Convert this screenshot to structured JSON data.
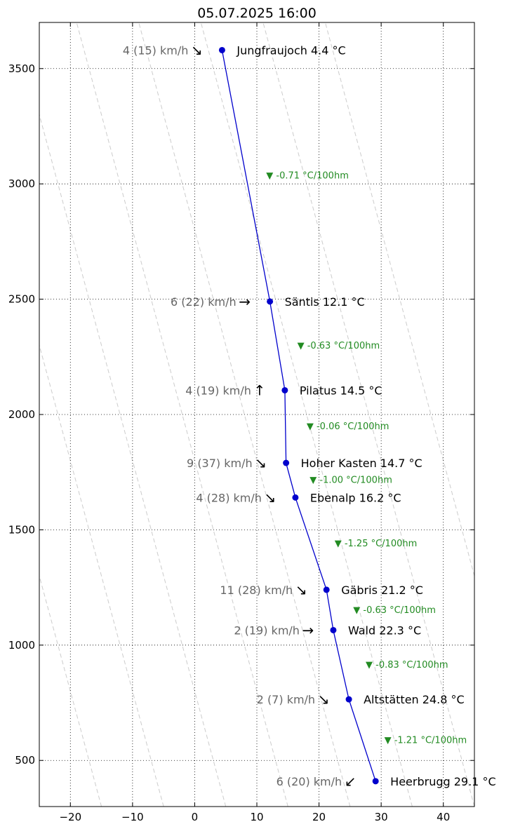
{
  "chart_data": {
    "type": "line",
    "title": "05.07.2025 16:00",
    "xlabel": "",
    "ylabel": "",
    "xlim": [
      -25,
      45
    ],
    "ylim": [
      300,
      3700
    ],
    "xticks": [
      -20,
      -10,
      0,
      10,
      20,
      30,
      40
    ],
    "yticks": [
      500,
      1000,
      1500,
      2000,
      2500,
      3000,
      3500
    ],
    "xtick_labels": [
      "−20",
      "−10",
      "0",
      "10",
      "20",
      "30",
      "40"
    ],
    "ytick_labels": [
      "500",
      "1000",
      "1500",
      "2000",
      "2500",
      "3000",
      "3500"
    ],
    "grid": true,
    "colors": {
      "line": "#0000cc",
      "marker": "#0000cc",
      "lapse": "#228b22",
      "wind": "#666666",
      "background_line": "#cccccc"
    },
    "dry_adiabats_x_at_300m": [
      -55,
      -45,
      -35,
      -25,
      -15,
      -5,
      5,
      15,
      25,
      35,
      45,
      55
    ],
    "dry_adiabat_lapse": -1.0,
    "stations": [
      {
        "name": "Heerbrugg",
        "altitude": 410,
        "temp": 29.1,
        "label": "Heerbrugg 29.1 °C",
        "wind": "6 (20) km/h",
        "arrow": "↙"
      },
      {
        "name": "Altstätten",
        "altitude": 765,
        "temp": 24.8,
        "label": "Altstätten 24.8 °C",
        "wind": "2 (7) km/h",
        "arrow": "↘"
      },
      {
        "name": "Wald",
        "altitude": 1065,
        "temp": 22.3,
        "label": "Wald 22.3 °C",
        "wind": "2 (19) km/h",
        "arrow": "→"
      },
      {
        "name": "Gäbris",
        "altitude": 1240,
        "temp": 21.2,
        "label": "Gäbris 21.2 °C",
        "wind": "11 (28) km/h",
        "arrow": "↘"
      },
      {
        "name": "Ebenalp",
        "altitude": 1640,
        "temp": 16.2,
        "label": "Ebenalp 16.2 °C",
        "wind": "4 (28) km/h",
        "arrow": "↘"
      },
      {
        "name": "Hoher Kasten",
        "altitude": 1790,
        "temp": 14.7,
        "label": "Hoher Kasten 14.7 °C",
        "wind": "9 (37) km/h",
        "arrow": "↘"
      },
      {
        "name": "Pilatus",
        "altitude": 2105,
        "temp": 14.5,
        "label": "Pilatus 14.5 °C",
        "wind": "4 (19) km/h",
        "arrow": "↑"
      },
      {
        "name": "Säntis",
        "altitude": 2490,
        "temp": 12.1,
        "label": "Säntis 12.1 °C",
        "wind": "6 (22) km/h",
        "arrow": "→"
      },
      {
        "name": "Jungfraujoch",
        "altitude": 3580,
        "temp": 4.4,
        "label": "Jungfraujoch 4.4 °C",
        "wind": "4 (15) km/h",
        "arrow": "↘"
      }
    ],
    "lapse_rates": [
      {
        "label": "▼ -1.21 °C/100hm",
        "x": 30.5,
        "y": 588
      },
      {
        "label": "▼ -0.83 °C/100hm",
        "x": 27.5,
        "y": 915
      },
      {
        "label": "▼ -0.63 °C/100hm",
        "x": 25.5,
        "y": 1152
      },
      {
        "label": "▼ -1.25 °C/100hm",
        "x": 22.5,
        "y": 1440
      },
      {
        "label": "▼ -1.00 °C/100hm",
        "x": 18.5,
        "y": 1715
      },
      {
        "label": "▼ -0.06 °C/100hm",
        "x": 18,
        "y": 1948
      },
      {
        "label": "▼ -0.63 °C/100hm",
        "x": 16.5,
        "y": 2298
      },
      {
        "label": "▼ -0.71 °C/100hm",
        "x": 11.5,
        "y": 3035
      }
    ]
  }
}
